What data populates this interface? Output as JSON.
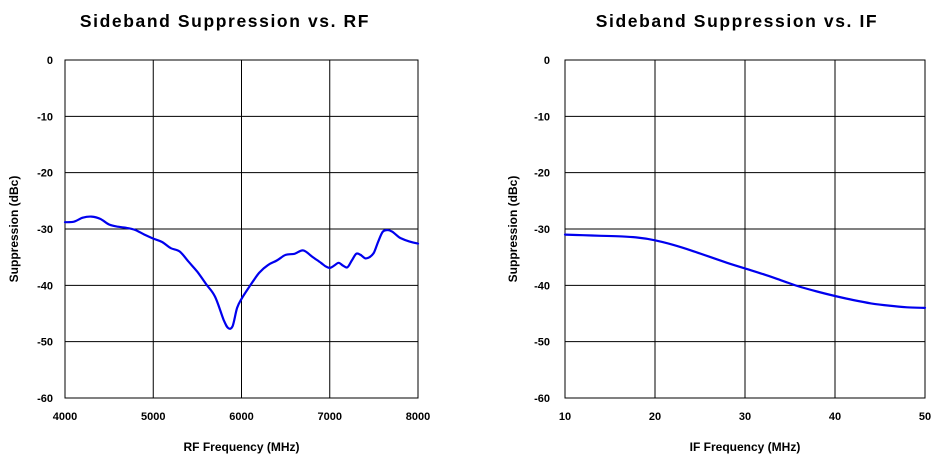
{
  "chart_data": [
    {
      "type": "line",
      "title": "Sideband Suppression vs. RF",
      "xlabel": "RF Frequency (MHz)",
      "ylabel": "Suppression (dBc)",
      "xlim": [
        4000,
        8000
      ],
      "ylim": [
        -60,
        0
      ],
      "xticks": [
        "4000",
        "5000",
        "6000",
        "7000",
        "8000"
      ],
      "yticks": [
        "0",
        "-10",
        "-20",
        "-30",
        "-40",
        "-50",
        "-60"
      ],
      "grid": true,
      "series": [
        {
          "color": "#0000ee",
          "x": [
            4000,
            4100,
            4200,
            4300,
            4400,
            4500,
            4600,
            4700,
            4800,
            4900,
            5000,
            5100,
            5200,
            5300,
            5400,
            5500,
            5600,
            5700,
            5800,
            5850,
            5900,
            5950,
            6000,
            6100,
            6200,
            6300,
            6400,
            6500,
            6600,
            6700,
            6800,
            6900,
            6950,
            7000,
            7050,
            7100,
            7150,
            7200,
            7250,
            7300,
            7350,
            7400,
            7450,
            7500,
            7550,
            7600,
            7650,
            7700,
            7750,
            7800,
            7900,
            8000
          ],
          "values": [
            -28.8,
            -28.7,
            -28.0,
            -27.8,
            -28.2,
            -29.2,
            -29.6,
            -29.8,
            -30.2,
            -31.0,
            -31.7,
            -32.3,
            -33.4,
            -34.0,
            -35.8,
            -37.6,
            -39.8,
            -42.0,
            -46.2,
            -47.6,
            -47.2,
            -44.0,
            -42.4,
            -40.0,
            -37.8,
            -36.4,
            -35.6,
            -34.6,
            -34.4,
            -33.8,
            -34.9,
            -36.0,
            -36.6,
            -36.9,
            -36.5,
            -36.0,
            -36.5,
            -36.8,
            -35.6,
            -34.4,
            -34.6,
            -35.2,
            -35.0,
            -34.2,
            -32.2,
            -30.5,
            -30.2,
            -30.4,
            -31.0,
            -31.6,
            -32.2,
            -32.6
          ]
        }
      ]
    },
    {
      "type": "line",
      "title": "Sideband Suppression vs. IF",
      "xlabel": "IF Frequency (MHz)",
      "ylabel": "Suppression (dBc)",
      "xlim": [
        10,
        50
      ],
      "ylim": [
        -60,
        0
      ],
      "xticks": [
        "10",
        "20",
        "30",
        "40",
        "50"
      ],
      "yticks": [
        "0",
        "-10",
        "-20",
        "-30",
        "-40",
        "-50",
        "-60"
      ],
      "grid": true,
      "series": [
        {
          "color": "#0000ee",
          "x": [
            10,
            12,
            14,
            16,
            18,
            20,
            22,
            24,
            26,
            28,
            30,
            32,
            34,
            36,
            38,
            40,
            42,
            44,
            46,
            48,
            50
          ],
          "values": [
            -31.0,
            -31.1,
            -31.2,
            -31.3,
            -31.5,
            -32.0,
            -32.8,
            -33.8,
            -34.9,
            -36.0,
            -37.0,
            -38.0,
            -39.1,
            -40.2,
            -41.1,
            -41.9,
            -42.6,
            -43.2,
            -43.6,
            -43.9,
            -44.0
          ]
        }
      ]
    }
  ]
}
